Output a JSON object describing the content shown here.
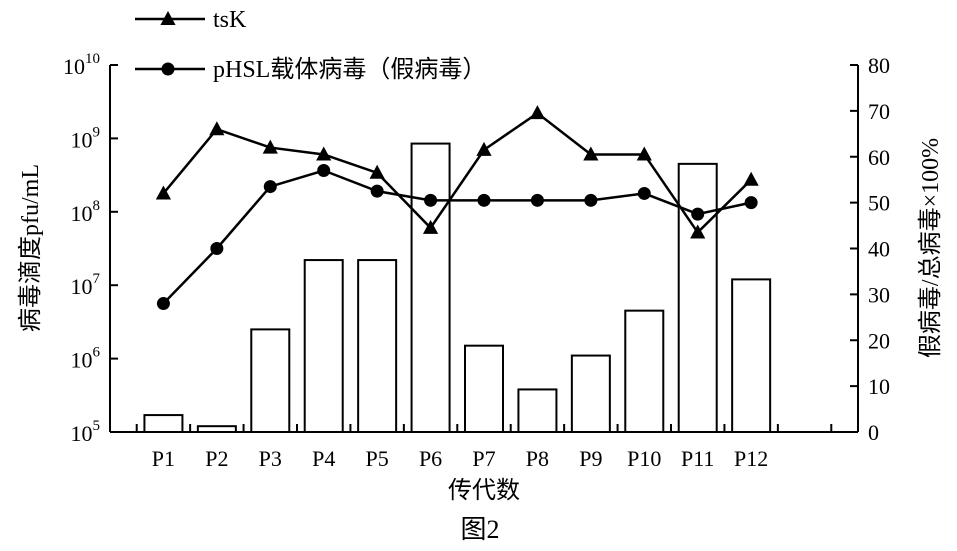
{
  "chart_data": {
    "type": "bar+line",
    "categories": [
      "P1",
      "P2",
      "P3",
      "P4",
      "P5",
      "P6",
      "P7",
      "P8",
      "P9",
      "P10",
      "P11",
      "P12"
    ],
    "bars": {
      "axis": "left",
      "scale": "log",
      "values": [
        170000,
        120000,
        2500000,
        22000000,
        22000000,
        850000000,
        1500000,
        380000,
        1100000,
        4500000,
        450000000,
        12000000
      ]
    },
    "series": [
      {
        "name": "tsK",
        "axis": "right",
        "marker": "triangle",
        "values": [
          52,
          66,
          62,
          60.5,
          56.5,
          44.5,
          61.5,
          69.5,
          60.5,
          60.5,
          43.5,
          55
        ]
      },
      {
        "name": "pHSL载体病毒（假病毒）",
        "axis": "right",
        "marker": "circle",
        "values": [
          28,
          40,
          53.5,
          57,
          52.5,
          50.5,
          50.5,
          50.5,
          50.5,
          52,
          47.5,
          50
        ]
      }
    ],
    "xlabel": "传代数",
    "ylabel": "病毒滴度pfu/mL",
    "y2label": "假病毒/总病毒×100%",
    "left_axis": {
      "min_exp": 5,
      "max_exp": 10,
      "base": "10",
      "exponents": [
        "5",
        "6",
        "7",
        "8",
        "9",
        "10"
      ]
    },
    "right_axis": {
      "ylim": [
        0,
        80
      ],
      "ticks": [
        "0",
        "10",
        "20",
        "30",
        "40",
        "50",
        "60",
        "70",
        "80"
      ]
    },
    "legend": {
      "position": "top-left"
    },
    "caption": "图2",
    "colors": {
      "bar_fill": "#ffffff",
      "stroke": "#000000"
    }
  }
}
